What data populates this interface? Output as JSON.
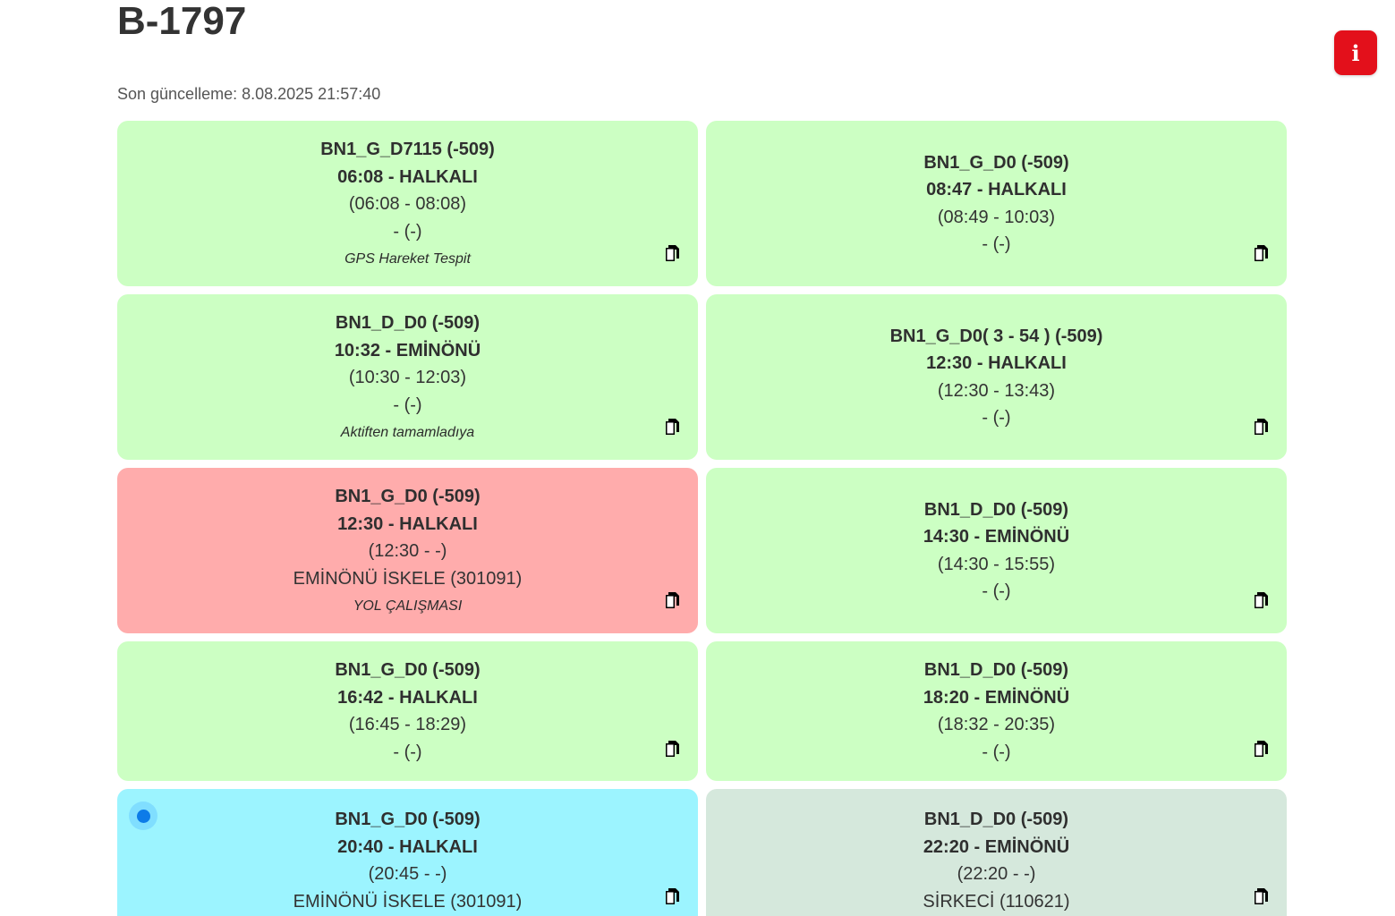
{
  "header": {
    "title": "B-1797",
    "last_update": "Son güncelleme: 8.08.2025 21:57:40",
    "info_label": "i"
  },
  "status_colors": {
    "green": "#ccffc3",
    "red": "#ffacac",
    "cyan": "#9cf4ff",
    "gray": "#d5e8dc",
    "info_button": "#e3101b",
    "live_dot": "#0d7be8"
  },
  "trips": [
    {
      "status": "green",
      "route": "BN1_G_D7115 (-509)",
      "departure": "06:08 - HALKALI",
      "time_range": "(06:08 - 08:08)",
      "stop": "- (-)",
      "note": "GPS Hareket Tespit",
      "copy_icon": "copy-icon"
    },
    {
      "status": "green",
      "route": "BN1_G_D0 (-509)",
      "departure": "08:47 - HALKALI",
      "time_range": "(08:49 - 10:03)",
      "stop": "- (-)",
      "note": "",
      "copy_icon": "copy-icon"
    },
    {
      "status": "green",
      "route": "BN1_D_D0 (-509)",
      "departure": "10:32 - EMİNÖNÜ",
      "time_range": "(10:30 - 12:03)",
      "stop": "- (-)",
      "note": "Aktiften tamamladıya",
      "copy_icon": "copy-icon"
    },
    {
      "status": "green",
      "route": "BN1_G_D0( 3 - 54 ) (-509)",
      "departure": "12:30 - HALKALI",
      "time_range": "(12:30 - 13:43)",
      "stop": "- (-)",
      "note": "",
      "copy_icon": "copy-icon"
    },
    {
      "status": "red",
      "route": "BN1_G_D0 (-509)",
      "departure": "12:30 - HALKALI",
      "time_range": "(12:30 - -)",
      "stop": "EMİNÖNÜ İSKELE (301091)",
      "note": "YOL ÇALIŞMASI",
      "copy_icon": "copy-icon"
    },
    {
      "status": "green",
      "route": "BN1_D_D0 (-509)",
      "departure": "14:30 - EMİNÖNÜ",
      "time_range": "(14:30 - 15:55)",
      "stop": "- (-)",
      "note": "",
      "copy_icon": "copy-icon"
    },
    {
      "status": "green",
      "route": "BN1_G_D0 (-509)",
      "departure": "16:42 - HALKALI",
      "time_range": "(16:45 - 18:29)",
      "stop": "- (-)",
      "note": "",
      "copy_icon": "copy-icon"
    },
    {
      "status": "green",
      "route": "BN1_D_D0 (-509)",
      "departure": "18:20 - EMİNÖNÜ",
      "time_range": "(18:32 - 20:35)",
      "stop": "- (-)",
      "note": "",
      "copy_icon": "copy-icon"
    },
    {
      "status": "cyan",
      "live_indicator": "live-dot-icon",
      "route": "BN1_G_D0 (-509)",
      "departure": "20:40 - HALKALI",
      "time_range": "(20:45 - -)",
      "stop": "EMİNÖNÜ İSKELE (301091)",
      "note": "",
      "copy_icon": "copy-icon"
    },
    {
      "status": "gray",
      "route": "BN1_D_D0 (-509)",
      "departure": "22:20 - EMİNÖNÜ",
      "time_range": "(22:20 - -)",
      "stop": "SİRKECİ (110621)",
      "note": "",
      "copy_icon": "copy-icon"
    }
  ]
}
